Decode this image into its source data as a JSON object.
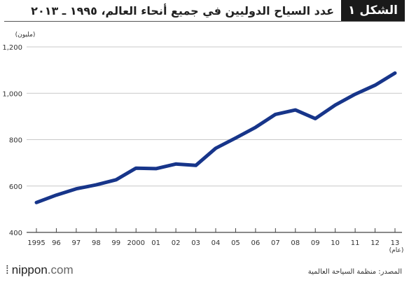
{
  "header": {
    "figure_label": "الشكل",
    "figure_number": "١",
    "title": "عدد السياح الدوليين في جميع أنحاء العالم، ١٩٩٥ ـ ٢٠١٣"
  },
  "footer": {
    "source": "المصدر: منظمة السياحة العالمية",
    "logo_text": "nippon",
    "logo_suffix": ".com"
  },
  "colors": {
    "line": "#17358a",
    "grid": "#c8c8c8",
    "axis": "#444444"
  },
  "chart_data": {
    "type": "line",
    "ylabel": "(مليون)",
    "xlabel": "(عام)",
    "ylim": [
      400,
      1200
    ],
    "yticks": [
      400,
      600,
      800,
      1000,
      1200
    ],
    "ytick_labels": [
      "400",
      "600",
      "800",
      "1,000",
      "1,200"
    ],
    "x_labels": [
      "1995",
      "96",
      "97",
      "98",
      "99",
      "2000",
      "01",
      "02",
      "03",
      "04",
      "05",
      "06",
      "07",
      "08",
      "09",
      "10",
      "11",
      "12",
      "13"
    ],
    "series": [
      {
        "values": [
          529,
          561,
          588,
          605,
          627,
          677,
          675,
          695,
          689,
          763,
          807,
          853,
          909,
          928,
          891,
          949,
          996,
          1035,
          1087
        ]
      }
    ],
    "grid": true
  }
}
